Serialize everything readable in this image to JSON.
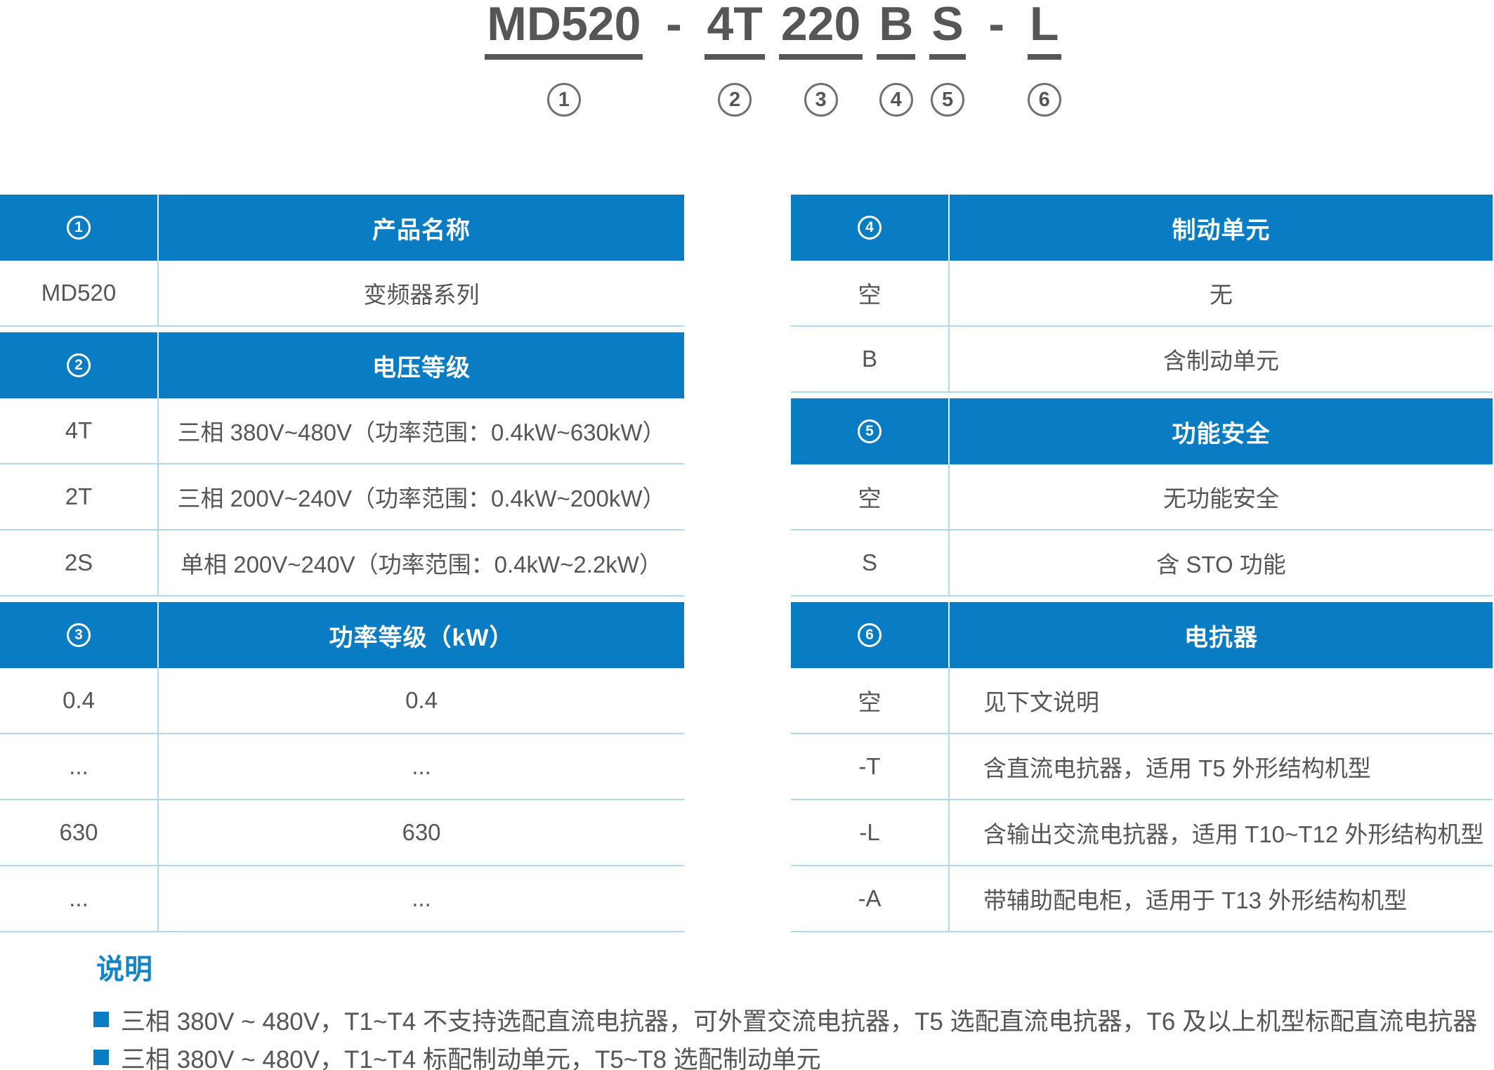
{
  "title": {
    "full_code": "MD520 - 4T 220 B S - L",
    "segments": [
      {
        "text": "MD520",
        "num": "1"
      },
      {
        "text": "-"
      },
      {
        "text": "4T",
        "num": "2"
      },
      {
        "text": "220",
        "num": "3"
      },
      {
        "text": "B",
        "num": "4"
      },
      {
        "text": "S",
        "num": "5"
      },
      {
        "text": "-"
      },
      {
        "text": "L",
        "num": "6"
      }
    ]
  },
  "left_table": {
    "sections": [
      {
        "num": "1",
        "header": "产品名称",
        "rows": [
          {
            "code": "MD520",
            "desc": "变频器系列"
          }
        ]
      },
      {
        "num": "2",
        "header": "电压等级",
        "rows": [
          {
            "code": "4T",
            "desc": "三相 380V~480V（功率范围：0.4kW~630kW）"
          },
          {
            "code": "2T",
            "desc": "三相 200V~240V（功率范围：0.4kW~200kW）"
          },
          {
            "code": "2S",
            "desc": "单相 200V~240V（功率范围：0.4kW~2.2kW）"
          }
        ]
      },
      {
        "num": "3",
        "header": "功率等级（kW）",
        "rows": [
          {
            "code": "0.4",
            "desc": "0.4"
          },
          {
            "code": "...",
            "desc": "..."
          },
          {
            "code": "630",
            "desc": "630"
          },
          {
            "code": "...",
            "desc": "..."
          }
        ]
      }
    ]
  },
  "right_table": {
    "sections": [
      {
        "num": "4",
        "header": "制动单元",
        "rows": [
          {
            "code": "空",
            "desc": "无"
          },
          {
            "code": "B",
            "desc": "含制动单元"
          }
        ]
      },
      {
        "num": "5",
        "header": "功能安全",
        "rows": [
          {
            "code": "空",
            "desc": "无功能安全"
          },
          {
            "code": "S",
            "desc": "含 STO 功能"
          }
        ]
      },
      {
        "num": "6",
        "header": "电抗器",
        "align": "left",
        "rows": [
          {
            "code": "空",
            "desc": "见下文说明"
          },
          {
            "code": "-T",
            "desc": "含直流电抗器，适用 T5 外形结构机型"
          },
          {
            "code": "-L",
            "desc": "含输出交流电抗器，适用 T10~T12 外形结构机型"
          },
          {
            "code": "-A",
            "desc": "带辅助配电柜，适用于 T13 外形结构机型"
          }
        ]
      }
    ]
  },
  "notes": {
    "heading": "说明",
    "items": [
      "三相 380V ~ 480V，T1~T4 不支持选配直流电抗器，可外置交流电抗器，T5 选配直流电抗器，T6 及以上机型标配直流电抗器",
      "三相 380V ~ 480V，T1~T4 标配制动单元，T5~T8 选配制动单元"
    ]
  },
  "colors": {
    "accent_blue": "#0a7cc4",
    "light_border": "#b0d8f2",
    "text_gray": "#565656"
  }
}
